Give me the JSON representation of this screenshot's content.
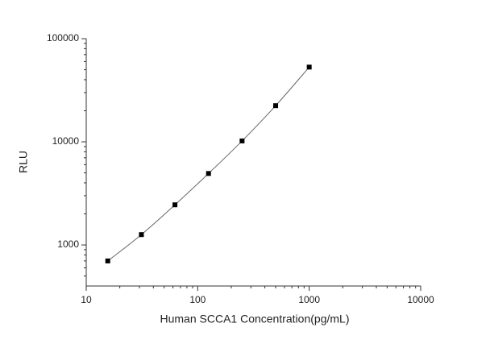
{
  "chart_data": {
    "type": "scatter",
    "x_label": "Human SCCA1 Concentration(pg/mL)",
    "y_label": "RLU",
    "x": [
      15.6,
      31.25,
      62.5,
      125,
      250,
      500,
      1000
    ],
    "series": [
      {
        "color": "#000000",
        "values": [
          700,
          1260,
          2450,
          4930,
          10200,
          22400,
          53000
        ]
      }
    ],
    "curve": true,
    "xlog": true,
    "ylog": true,
    "xlim": [
      10,
      10000
    ],
    "ylim": [
      400,
      100000
    ],
    "xticks": [
      10,
      100,
      1000,
      10000
    ],
    "yticks": [
      1000,
      10000,
      100000
    ]
  }
}
